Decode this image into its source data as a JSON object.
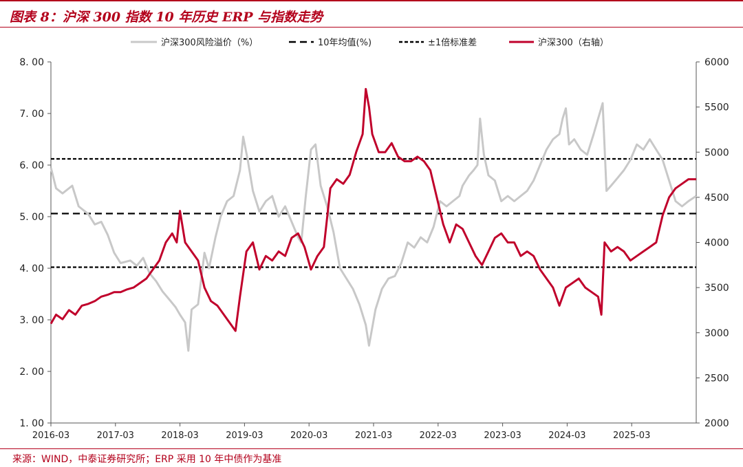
{
  "header": {
    "title": "图表 8：沪深 300 指数 10 年历史 ERP 与指数走势"
  },
  "footer": {
    "source": "来源：WIND，中泰证券研究所；ERP 采用 10 年中债作为基准"
  },
  "chart_data": {
    "type": "line",
    "title": "",
    "x_tick_labels": [
      "2016-03",
      "2017-03",
      "2018-03",
      "2019-03",
      "2020-03",
      "2021-03",
      "2022-03",
      "2023-03",
      "2024-03",
      "2025-03"
    ],
    "x_range": [
      2016.17,
      2026.17
    ],
    "y_left": {
      "range": [
        1,
        8
      ],
      "ticks": [
        "1. 00",
        "2. 00",
        "3. 00",
        "4. 00",
        "5. 00",
        "6. 00",
        "7. 00",
        "8. 00"
      ]
    },
    "y_right": {
      "range": [
        2000,
        6000
      ],
      "ticks": [
        "2000",
        "2500",
        "3000",
        "3500",
        "4000",
        "4500",
        "5000",
        "5500",
        "6000"
      ]
    },
    "grid": false,
    "legend_position": "top",
    "legend": [
      {
        "label": "沪深300风险溢价（%）",
        "style": "solid-gray"
      },
      {
        "label": "10年均值(%)",
        "style": "dashed-black"
      },
      {
        "label": "±1倍标准差",
        "style": "dotted-black"
      },
      {
        "label": "沪深300（右轴）",
        "style": "solid-red"
      }
    ],
    "colors": {
      "erp": "#c8c8c8",
      "index": "#c0002b",
      "mean": "#000000",
      "band": "#000000"
    },
    "reference_lines": {
      "mean": 5.06,
      "plus_1sd": 6.12,
      "minus_1sd": 4.02
    },
    "series": [
      {
        "name": "沪深300风险溢价（%）",
        "axis": "left",
        "points": [
          [
            2016.17,
            5.95
          ],
          [
            2016.25,
            5.55
          ],
          [
            2016.35,
            5.45
          ],
          [
            2016.5,
            5.6
          ],
          [
            2016.6,
            5.2
          ],
          [
            2016.75,
            5.05
          ],
          [
            2016.85,
            4.85
          ],
          [
            2016.95,
            4.9
          ],
          [
            2017.05,
            4.65
          ],
          [
            2017.15,
            4.3
          ],
          [
            2017.25,
            4.1
          ],
          [
            2017.4,
            4.15
          ],
          [
            2017.5,
            4.05
          ],
          [
            2017.6,
            4.2
          ],
          [
            2017.7,
            3.9
          ],
          [
            2017.8,
            3.75
          ],
          [
            2017.9,
            3.55
          ],
          [
            2018.0,
            3.4
          ],
          [
            2018.1,
            3.25
          ],
          [
            2018.17,
            3.1
          ],
          [
            2018.25,
            2.95
          ],
          [
            2018.3,
            2.4
          ],
          [
            2018.35,
            3.2
          ],
          [
            2018.45,
            3.3
          ],
          [
            2018.55,
            4.3
          ],
          [
            2018.62,
            4.0
          ],
          [
            2018.72,
            4.6
          ],
          [
            2018.8,
            5.0
          ],
          [
            2018.9,
            5.3
          ],
          [
            2019.0,
            5.4
          ],
          [
            2019.1,
            5.9
          ],
          [
            2019.15,
            6.55
          ],
          [
            2019.22,
            6.1
          ],
          [
            2019.3,
            5.5
          ],
          [
            2019.4,
            5.1
          ],
          [
            2019.5,
            5.3
          ],
          [
            2019.6,
            5.4
          ],
          [
            2019.7,
            5.0
          ],
          [
            2019.8,
            5.2
          ],
          [
            2019.9,
            4.9
          ],
          [
            2020.0,
            4.6
          ],
          [
            2020.05,
            4.5
          ],
          [
            2020.12,
            5.4
          ],
          [
            2020.2,
            6.3
          ],
          [
            2020.27,
            6.4
          ],
          [
            2020.35,
            5.6
          ],
          [
            2020.45,
            5.2
          ],
          [
            2020.55,
            4.7
          ],
          [
            2020.65,
            4.0
          ],
          [
            2020.75,
            3.8
          ],
          [
            2020.85,
            3.6
          ],
          [
            2020.95,
            3.3
          ],
          [
            2021.05,
            2.9
          ],
          [
            2021.1,
            2.5
          ],
          [
            2021.2,
            3.2
          ],
          [
            2021.3,
            3.6
          ],
          [
            2021.4,
            3.8
          ],
          [
            2021.5,
            3.85
          ],
          [
            2021.6,
            4.1
          ],
          [
            2021.7,
            4.5
          ],
          [
            2021.8,
            4.4
          ],
          [
            2021.9,
            4.6
          ],
          [
            2022.0,
            4.5
          ],
          [
            2022.1,
            4.8
          ],
          [
            2022.2,
            5.3
          ],
          [
            2022.3,
            5.2
          ],
          [
            2022.4,
            5.3
          ],
          [
            2022.5,
            5.4
          ],
          [
            2022.55,
            5.6
          ],
          [
            2022.65,
            5.8
          ],
          [
            2022.72,
            5.9
          ],
          [
            2022.78,
            6.0
          ],
          [
            2022.82,
            6.9
          ],
          [
            2022.88,
            6.2
          ],
          [
            2022.95,
            5.8
          ],
          [
            2023.05,
            5.7
          ],
          [
            2023.15,
            5.3
          ],
          [
            2023.25,
            5.4
          ],
          [
            2023.35,
            5.3
          ],
          [
            2023.45,
            5.4
          ],
          [
            2023.55,
            5.5
          ],
          [
            2023.65,
            5.7
          ],
          [
            2023.75,
            6.0
          ],
          [
            2023.85,
            6.3
          ],
          [
            2023.95,
            6.5
          ],
          [
            2024.05,
            6.6
          ],
          [
            2024.1,
            6.9
          ],
          [
            2024.15,
            7.1
          ],
          [
            2024.2,
            6.4
          ],
          [
            2024.28,
            6.5
          ],
          [
            2024.38,
            6.3
          ],
          [
            2024.48,
            6.2
          ],
          [
            2024.58,
            6.6
          ],
          [
            2024.65,
            6.9
          ],
          [
            2024.72,
            7.2
          ],
          [
            2024.78,
            5.5
          ],
          [
            2024.85,
            5.6
          ],
          [
            2024.95,
            5.75
          ],
          [
            2025.05,
            5.9
          ],
          [
            2025.15,
            6.1
          ],
          [
            2025.25,
            6.4
          ],
          [
            2025.35,
            6.3
          ],
          [
            2025.45,
            6.5
          ],
          [
            2025.55,
            6.3
          ],
          [
            2025.65,
            6.1
          ],
          [
            2025.75,
            5.7
          ],
          [
            2025.85,
            5.3
          ],
          [
            2025.95,
            5.2
          ],
          [
            2026.05,
            5.3
          ],
          [
            2026.17,
            5.4
          ]
        ]
      },
      {
        "name": "沪深300（右轴）",
        "axis": "right",
        "points": [
          [
            2016.17,
            3100
          ],
          [
            2016.25,
            3200
          ],
          [
            2016.35,
            3150
          ],
          [
            2016.45,
            3250
          ],
          [
            2016.55,
            3200
          ],
          [
            2016.65,
            3300
          ],
          [
            2016.75,
            3320
          ],
          [
            2016.85,
            3350
          ],
          [
            2016.95,
            3400
          ],
          [
            2017.05,
            3420
          ],
          [
            2017.15,
            3450
          ],
          [
            2017.25,
            3450
          ],
          [
            2017.35,
            3480
          ],
          [
            2017.45,
            3500
          ],
          [
            2017.55,
            3550
          ],
          [
            2017.65,
            3600
          ],
          [
            2017.75,
            3700
          ],
          [
            2017.85,
            3800
          ],
          [
            2017.95,
            4000
          ],
          [
            2018.05,
            4100
          ],
          [
            2018.12,
            4000
          ],
          [
            2018.17,
            4350
          ],
          [
            2018.25,
            4000
          ],
          [
            2018.35,
            3900
          ],
          [
            2018.45,
            3800
          ],
          [
            2018.55,
            3500
          ],
          [
            2018.65,
            3350
          ],
          [
            2018.75,
            3300
          ],
          [
            2018.85,
            3200
          ],
          [
            2018.95,
            3100
          ],
          [
            2019.03,
            3020
          ],
          [
            2019.1,
            3400
          ],
          [
            2019.2,
            3900
          ],
          [
            2019.3,
            4000
          ],
          [
            2019.4,
            3700
          ],
          [
            2019.5,
            3850
          ],
          [
            2019.6,
            3800
          ],
          [
            2019.7,
            3900
          ],
          [
            2019.8,
            3850
          ],
          [
            2019.9,
            4050
          ],
          [
            2020.0,
            4100
          ],
          [
            2020.1,
            3950
          ],
          [
            2020.2,
            3700
          ],
          [
            2020.3,
            3850
          ],
          [
            2020.4,
            3950
          ],
          [
            2020.5,
            4600
          ],
          [
            2020.6,
            4700
          ],
          [
            2020.7,
            4650
          ],
          [
            2020.8,
            4750
          ],
          [
            2020.9,
            5000
          ],
          [
            2021.0,
            5200
          ],
          [
            2021.05,
            5700
          ],
          [
            2021.1,
            5500
          ],
          [
            2021.15,
            5200
          ],
          [
            2021.25,
            5000
          ],
          [
            2021.35,
            5000
          ],
          [
            2021.45,
            5100
          ],
          [
            2021.55,
            4950
          ],
          [
            2021.65,
            4900
          ],
          [
            2021.75,
            4900
          ],
          [
            2021.85,
            4950
          ],
          [
            2021.95,
            4900
          ],
          [
            2022.05,
            4800
          ],
          [
            2022.15,
            4500
          ],
          [
            2022.25,
            4200
          ],
          [
            2022.35,
            4000
          ],
          [
            2022.45,
            4200
          ],
          [
            2022.55,
            4150
          ],
          [
            2022.65,
            4000
          ],
          [
            2022.75,
            3850
          ],
          [
            2022.85,
            3750
          ],
          [
            2022.95,
            3900
          ],
          [
            2023.05,
            4050
          ],
          [
            2023.15,
            4100
          ],
          [
            2023.25,
            4000
          ],
          [
            2023.35,
            4000
          ],
          [
            2023.45,
            3850
          ],
          [
            2023.55,
            3900
          ],
          [
            2023.65,
            3850
          ],
          [
            2023.75,
            3700
          ],
          [
            2023.85,
            3600
          ],
          [
            2023.95,
            3500
          ],
          [
            2024.05,
            3300
          ],
          [
            2024.15,
            3500
          ],
          [
            2024.25,
            3550
          ],
          [
            2024.35,
            3600
          ],
          [
            2024.45,
            3500
          ],
          [
            2024.55,
            3450
          ],
          [
            2024.65,
            3400
          ],
          [
            2024.7,
            3200
          ],
          [
            2024.75,
            4000
          ],
          [
            2024.85,
            3900
          ],
          [
            2024.95,
            3950
          ],
          [
            2025.05,
            3900
          ],
          [
            2025.15,
            3800
          ],
          [
            2025.25,
            3850
          ],
          [
            2025.35,
            3900
          ],
          [
            2025.45,
            3950
          ],
          [
            2025.55,
            4000
          ],
          [
            2025.65,
            4300
          ],
          [
            2025.75,
            4500
          ],
          [
            2025.85,
            4600
          ],
          [
            2025.95,
            4650
          ],
          [
            2026.05,
            4700
          ],
          [
            2026.17,
            4700
          ]
        ]
      }
    ]
  }
}
